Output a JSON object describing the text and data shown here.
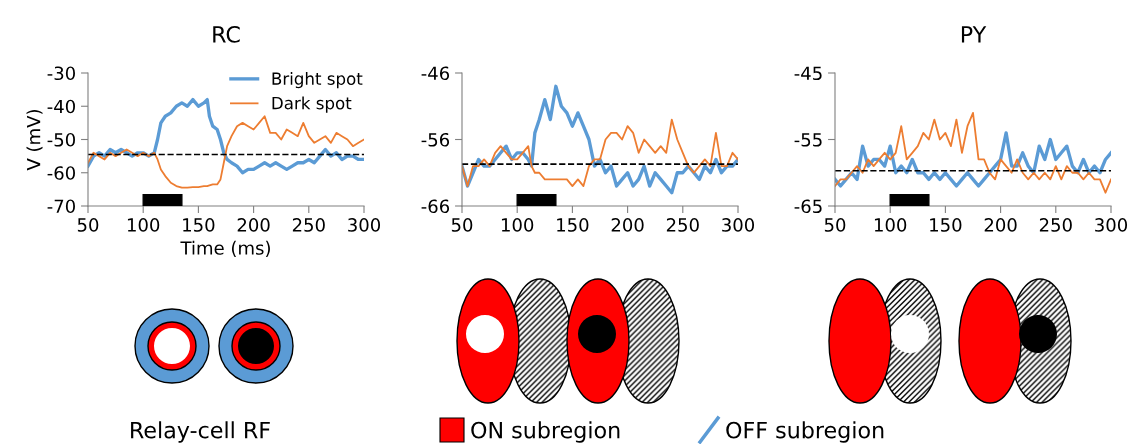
{
  "chart_data": [
    {
      "type": "line",
      "title": "RC",
      "xlabel": "Time (ms)",
      "ylabel": "V (mV)",
      "xlim": [
        50,
        300
      ],
      "xticks": [
        50,
        100,
        150,
        200,
        250,
        300
      ],
      "ylim": [
        -70,
        -30
      ],
      "yticks": [
        -70,
        -60,
        -50,
        -40,
        -30
      ],
      "legend": "top right",
      "grid": false,
      "marker": "none",
      "line_style": "solid",
      "x": [
        50,
        55,
        60,
        65,
        70,
        75,
        80,
        85,
        90,
        95,
        100,
        105,
        110,
        113,
        116,
        120,
        125,
        130,
        135,
        140,
        145,
        150,
        155,
        158,
        160,
        163,
        167,
        170,
        173,
        176,
        180,
        185,
        190,
        195,
        200,
        205,
        210,
        215,
        220,
        225,
        230,
        235,
        240,
        245,
        250,
        255,
        260,
        265,
        270,
        275,
        280,
        285,
        290,
        295,
        300
      ],
      "series": [
        {
          "name": "Bright spot",
          "color": "#5b9bd5",
          "values": [
            -58,
            -55,
            -54,
            -55,
            -53,
            -54,
            -53,
            -54,
            -55,
            -54,
            -54,
            -55,
            -54,
            -50,
            -45,
            -43,
            -42,
            -40,
            -39,
            -40,
            -38,
            -40,
            -39,
            -38,
            -43,
            -46,
            -47,
            -50,
            -54,
            -56,
            -57,
            -58,
            -60,
            -59,
            -59,
            -58,
            -57,
            -58,
            -57,
            -58,
            -59,
            -58,
            -57,
            -57,
            -56,
            -57,
            -55,
            -53,
            -55,
            -54,
            -56,
            -55,
            -55,
            -56,
            -56
          ]
        },
        {
          "name": "Dark spot",
          "color": "#ed7d31",
          "values": [
            -57,
            -54,
            -55,
            -56,
            -54,
            -55,
            -54,
            -53,
            -54,
            -55,
            -54,
            -55,
            -54,
            -56,
            -59,
            -61,
            -63,
            -64,
            -64.5,
            -64.5,
            -64.3,
            -64.3,
            -64,
            -64,
            -63.8,
            -63.5,
            -63.5,
            -62,
            -57,
            -52,
            -49,
            -46,
            -45,
            -46,
            -47,
            -45,
            -43,
            -48,
            -48,
            -50,
            -47,
            -48,
            -49,
            -45,
            -49,
            -51,
            -50,
            -49,
            -51,
            -48,
            -49,
            -50,
            -52,
            -51,
            -50
          ]
        }
      ],
      "ref_lines": [
        {
          "axis": "y",
          "value": -54.5,
          "color": "#000000",
          "line_style": "dashed"
        }
      ],
      "bands": [
        {
          "axis": "x",
          "from": 100,
          "to": 135,
          "color": "#000000"
        }
      ],
      "annotations": [
        "Relay-cell RF"
      ]
    },
    {
      "type": "line",
      "xlim": [
        50,
        300
      ],
      "xticks": [
        50,
        100,
        150,
        200,
        250,
        300
      ],
      "ylim": [
        -66,
        -46
      ],
      "yticks": [
        -66,
        -56,
        -46
      ],
      "grid": false,
      "marker": "none",
      "line_style": "solid",
      "x": [
        50,
        55,
        60,
        65,
        70,
        75,
        80,
        85,
        90,
        95,
        100,
        105,
        110,
        113,
        116,
        120,
        125,
        130,
        135,
        140,
        145,
        150,
        155,
        160,
        165,
        170,
        175,
        180,
        185,
        190,
        195,
        200,
        205,
        210,
        215,
        220,
        225,
        230,
        235,
        240,
        245,
        250,
        255,
        260,
        265,
        270,
        275,
        280,
        285,
        290,
        295,
        300
      ],
      "series": [
        {
          "color": "#5b9bd5",
          "values": [
            -60,
            -63,
            -61,
            -59,
            -60,
            -60,
            -59,
            -58,
            -57,
            -59,
            -58,
            -58,
            -59,
            -60,
            -55,
            -53,
            -50,
            -53,
            -48,
            -51,
            -52,
            -54,
            -52,
            -54,
            -56,
            -60,
            -59,
            -61,
            -60,
            -63,
            -62,
            -61,
            -63,
            -62,
            -60,
            -63,
            -61,
            -62,
            -63,
            -64,
            -61,
            -61,
            -60,
            -61,
            -62,
            -60,
            -61,
            -59,
            -61,
            -60,
            -60,
            -59
          ]
        },
        {
          "color": "#ed7d31",
          "values": [
            -60,
            -63,
            -60,
            -60,
            -59,
            -60,
            -58,
            -57,
            -58,
            -59,
            -59,
            -58,
            -57,
            -60,
            -61,
            -61,
            -62,
            -62,
            -62,
            -62,
            -62,
            -63,
            -62,
            -63,
            -60,
            -59,
            -59,
            -56,
            -55,
            -55,
            -56,
            -54,
            -55,
            -58,
            -56,
            -57,
            -58,
            -57,
            -58,
            -53,
            -56,
            -58,
            -60,
            -61,
            -60,
            -59,
            -60,
            -55,
            -60,
            -60,
            -58,
            -59
          ]
        }
      ],
      "ref_lines": [
        {
          "axis": "y",
          "value": -59.7,
          "color": "#000000",
          "line_style": "dashed"
        }
      ],
      "bands": [
        {
          "axis": "x",
          "from": 100,
          "to": 135,
          "color": "#000000"
        }
      ],
      "annotations": [
        "ON subregion",
        "OFF subregion"
      ]
    },
    {
      "type": "line",
      "title": "PY",
      "xlim": [
        50,
        300
      ],
      "xticks": [
        50,
        100,
        150,
        200,
        250,
        300
      ],
      "ylim": [
        -65,
        -45
      ],
      "yticks": [
        -65,
        -55,
        -45
      ],
      "grid": false,
      "marker": "none",
      "line_style": "solid",
      "x": [
        50,
        55,
        60,
        65,
        70,
        75,
        80,
        85,
        90,
        95,
        100,
        105,
        110,
        115,
        120,
        125,
        130,
        135,
        140,
        145,
        150,
        155,
        160,
        165,
        170,
        175,
        180,
        185,
        190,
        195,
        200,
        205,
        210,
        215,
        220,
        225,
        230,
        235,
        240,
        245,
        250,
        255,
        260,
        265,
        270,
        275,
        280,
        285,
        290,
        295,
        300
      ],
      "series": [
        {
          "color": "#5b9bd5",
          "values": [
            -61,
            -62,
            -61,
            -60,
            -61,
            -56,
            -59,
            -58,
            -58,
            -59,
            -56,
            -60,
            -59,
            -60,
            -58,
            -60,
            -60,
            -61,
            -60,
            -61,
            -60,
            -61,
            -62,
            -61,
            -60,
            -61,
            -62,
            -61,
            -60,
            -59,
            -58,
            -54,
            -59,
            -59,
            -57,
            -59,
            -60,
            -56,
            -58,
            -55,
            -58,
            -57,
            -56,
            -59,
            -60,
            -58,
            -60,
            -59,
            -60,
            -58,
            -57
          ]
        },
        {
          "color": "#ed7d31",
          "values": [
            -62,
            -61,
            -61,
            -60,
            -59,
            -60,
            -58,
            -59,
            -58,
            -57,
            -58,
            -57,
            -53,
            -58,
            -57,
            -56,
            -54,
            -55,
            -52,
            -55,
            -54,
            -56,
            -52,
            -57,
            -53,
            -51,
            -58,
            -58,
            -60,
            -61,
            -58,
            -59,
            -60,
            -58,
            -60,
            -61,
            -60,
            -61,
            -60,
            -61,
            -59,
            -61,
            -59,
            -60,
            -60,
            -61,
            -60,
            -61,
            -61,
            -63,
            -61
          ]
        }
      ],
      "ref_lines": [
        {
          "axis": "y",
          "value": -59.7,
          "color": "#000000",
          "line_style": "dashed"
        }
      ],
      "bands": [
        {
          "axis": "x",
          "from": 100,
          "to": 135,
          "color": "#000000"
        }
      ]
    }
  ]
}
